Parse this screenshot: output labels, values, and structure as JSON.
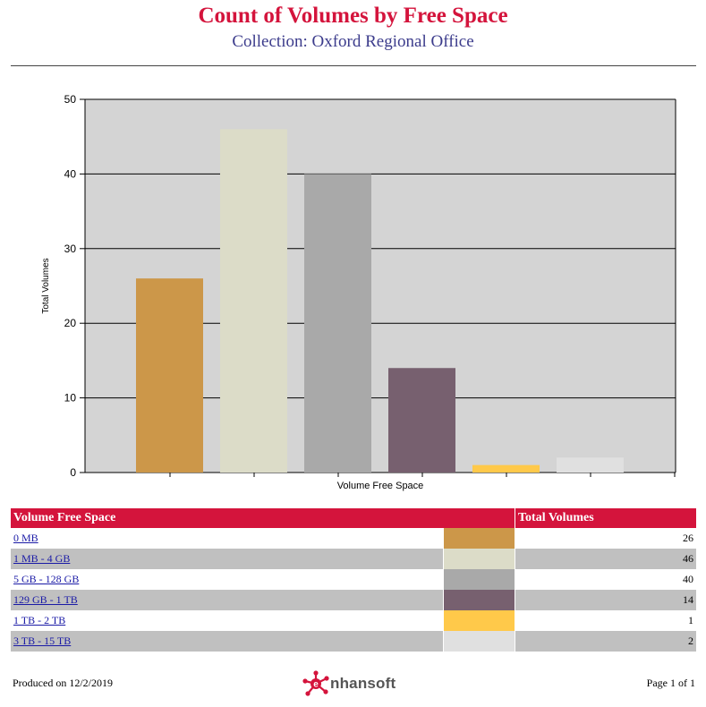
{
  "report": {
    "title": "Count of Volumes by Free Space",
    "subtitle": "Collection: Oxford Regional Office",
    "produced_label": "Produced on",
    "produced_date": "12/2/2019",
    "page": "Page 1 of 1",
    "logo_text": "nhansoft"
  },
  "chart_data": {
    "type": "bar",
    "categories": [
      "0 MB",
      "1 MB - 4 GB",
      "5 GB - 128 GB",
      "129 GB - 1 TB",
      "1 TB - 2 TB",
      "3 TB - 15 TB"
    ],
    "values": [
      26,
      46,
      40,
      14,
      1,
      2
    ],
    "colors": [
      "#cc9749",
      "#dcdcc8",
      "#a9a9a9",
      "#77606f",
      "#ffc94a",
      "#e0e0e0"
    ],
    "xlabel": "Volume Free Space",
    "ylabel": "Total Volumes",
    "ylim": [
      0,
      50
    ],
    "yticks": [
      0,
      10,
      20,
      30,
      40,
      50
    ],
    "grid": true,
    "legend": "none",
    "plot_background": "#d4d4d4"
  },
  "table": {
    "headers": [
      "Volume Free Space",
      "Total Volumes"
    ],
    "header_color": "#d4143c"
  }
}
